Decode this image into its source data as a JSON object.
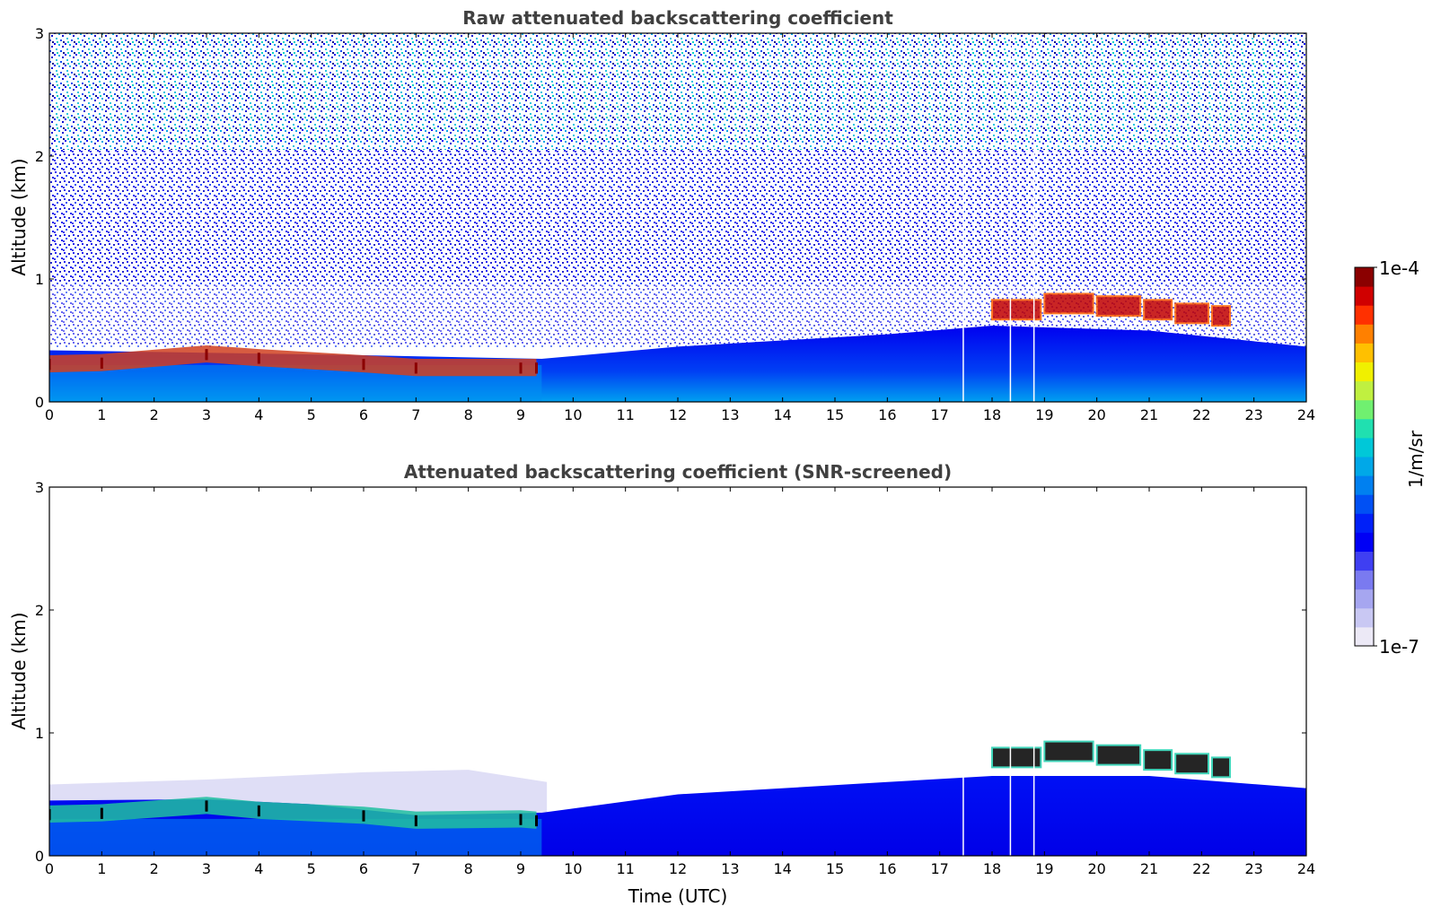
{
  "chart_data": [
    {
      "type": "heatmap",
      "title": "Raw attenuated backscattering coefficient",
      "xlabel": "",
      "ylabel": "Altitude (km)",
      "xlim": [
        0,
        24
      ],
      "ylim": [
        0,
        3
      ],
      "xticks": [
        "0",
        "1",
        "2",
        "3",
        "4",
        "5",
        "6",
        "7",
        "8",
        "9",
        "10",
        "11",
        "12",
        "13",
        "14",
        "15",
        "16",
        "17",
        "18",
        "19",
        "20",
        "21",
        "22",
        "23",
        "24"
      ],
      "yticks": [
        "0",
        "1",
        "2",
        "3"
      ],
      "data_gaps_hours": [
        17.45,
        18.35,
        18.8
      ],
      "features": {
        "boundary_layer_top_km": [
          [
            0,
            0.42
          ],
          [
            3,
            0.4
          ],
          [
            6,
            0.38
          ],
          [
            9.4,
            0.35
          ],
          [
            12,
            0.45
          ],
          [
            16,
            0.55
          ],
          [
            18,
            0.62
          ],
          [
            21,
            0.58
          ],
          [
            24,
            0.45
          ]
        ],
        "cloud_layer_km": [
          [
            0,
            0.3
          ],
          [
            1,
            0.31
          ],
          [
            3,
            0.38
          ],
          [
            4,
            0.35
          ],
          [
            6,
            0.3
          ],
          [
            7,
            0.27
          ],
          [
            9,
            0.27
          ],
          [
            9.3,
            0.27
          ]
        ],
        "elevated_cloud_km": [
          [
            18,
            0.75
          ],
          [
            19,
            0.8
          ],
          [
            20,
            0.78
          ],
          [
            20.9,
            0.75
          ],
          [
            21.5,
            0.72
          ],
          [
            22.2,
            0.7
          ]
        ]
      }
    },
    {
      "type": "heatmap",
      "title": "Attenuated backscattering coefficient (SNR-screened)",
      "xlabel": "Time (UTC)",
      "ylabel": "Altitude (km)",
      "xlim": [
        0,
        24
      ],
      "ylim": [
        0,
        3
      ],
      "xticks": [
        "0",
        "1",
        "2",
        "3",
        "4",
        "5",
        "6",
        "7",
        "8",
        "9",
        "10",
        "11",
        "12",
        "13",
        "14",
        "15",
        "16",
        "17",
        "18",
        "19",
        "20",
        "21",
        "22",
        "23",
        "24"
      ],
      "yticks": [
        "0",
        "1",
        "2",
        "3"
      ],
      "data_gaps_hours": [
        17.45,
        18.35,
        18.8
      ],
      "features": {
        "boundary_layer_top_km": [
          [
            0,
            0.45
          ],
          [
            3,
            0.46
          ],
          [
            5,
            0.42
          ],
          [
            7,
            0.33
          ],
          [
            9.4,
            0.35
          ],
          [
            12,
            0.5
          ],
          [
            16,
            0.6
          ],
          [
            18,
            0.65
          ],
          [
            21,
            0.65
          ],
          [
            24,
            0.55
          ]
        ],
        "residual_layer_top_km": [
          [
            0,
            0.58
          ],
          [
            3,
            0.62
          ],
          [
            6,
            0.68
          ],
          [
            8,
            0.7
          ],
          [
            9.5,
            0.6
          ]
        ],
        "cloud_layer_km": [
          [
            0,
            0.33
          ],
          [
            1,
            0.34
          ],
          [
            3,
            0.4
          ],
          [
            4,
            0.36
          ],
          [
            6,
            0.32
          ],
          [
            7,
            0.28
          ],
          [
            9,
            0.29
          ],
          [
            9.3,
            0.28
          ]
        ],
        "elevated_cloud_km": [
          [
            18,
            0.8
          ],
          [
            19,
            0.85
          ],
          [
            20,
            0.82
          ],
          [
            20.9,
            0.78
          ],
          [
            21.5,
            0.75
          ],
          [
            22.2,
            0.72
          ]
        ]
      }
    }
  ],
  "colorbar": {
    "label": "1/m/sr",
    "max_label": "1e-4",
    "min_label": "1e-7",
    "colors": [
      "#ece9f6",
      "#c9c8f3",
      "#a6a6f0",
      "#7a7af0",
      "#3f3ff2",
      "#0000f5",
      "#0020f8",
      "#0050f4",
      "#0080f0",
      "#00a8e8",
      "#00c8d8",
      "#20e0b0",
      "#70f070",
      "#c0f040",
      "#f0f000",
      "#ffc000",
      "#ff8000",
      "#ff3000",
      "#d00000",
      "#8b0000"
    ]
  }
}
